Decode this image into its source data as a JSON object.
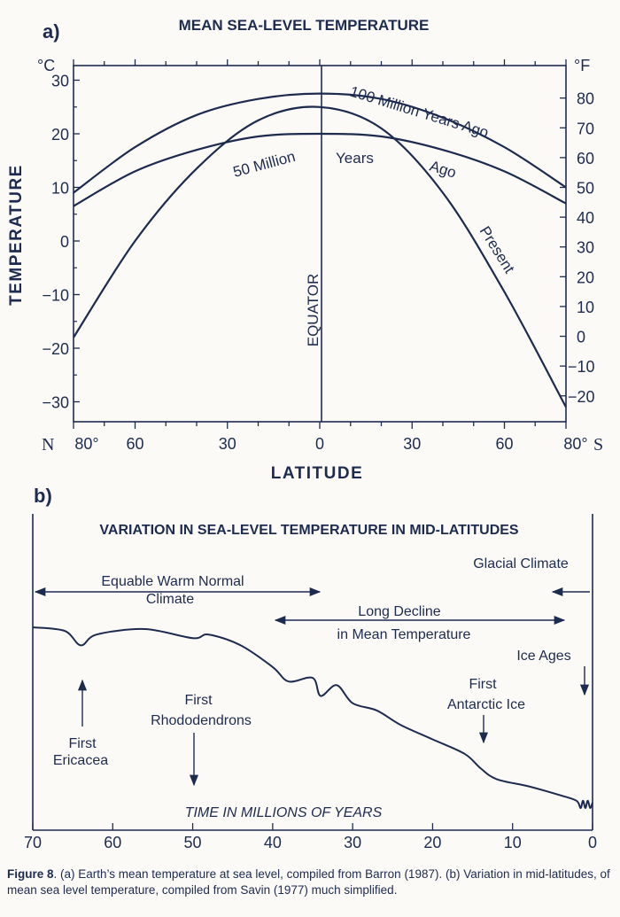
{
  "figure_a": {
    "panel_label": "a)",
    "title": "MEAN SEA-LEVEL TEMPERATURE",
    "unit_left": "°C",
    "unit_right": "°F",
    "ylabel": "TEMPERATURE",
    "xlabel": "LATITUDE",
    "x_left_letter": "N",
    "x_right_letter": "S",
    "equator_label": "EQUATOR",
    "curve_labels": {
      "mya100": "100 Million Years Ago",
      "mya50_a": "50 Million",
      "mya50_b": "Years",
      "mya50_c": "Ago",
      "present": "Present"
    }
  },
  "figure_b": {
    "panel_label": "b)",
    "title": "VARIATION IN SEA-LEVEL TEMPERATURE IN MID-LATITUDES",
    "xlabel": "TIME IN MILLIONS OF YEARS",
    "annotations": {
      "equable_1": "Equable Warm Normal",
      "equable_2": "Climate",
      "glacial": "Glacial Climate",
      "decline_1": "Long Decline",
      "decline_2": "in Mean Temperature",
      "ice_ages": "Ice Ages",
      "antarctic_1": "First",
      "antarctic_2": "Antarctic Ice",
      "rhodo_1": "First",
      "rhodo_2": "Rhododendrons",
      "erica_1": "First",
      "erica_2": "Ericacea"
    }
  },
  "caption": {
    "label": "Figure 8",
    "text": ". (a) Earth’s mean temperature at sea level, compiled from Barron (1987). (b) Variation in mid-latitudes, of mean sea level temperature, compiled from Savin (1977) much simplified."
  },
  "colors": {
    "ink": "#1d2b4f",
    "background": "#fbfaf7"
  },
  "chart_data": [
    {
      "type": "line",
      "title": "MEAN SEA-LEVEL TEMPERATURE",
      "xlabel": "LATITUDE",
      "ylabel": "TEMPERATURE",
      "x_ticks": [
        "80°",
        "60",
        "30",
        "0",
        "30",
        "60",
        "80°"
      ],
      "x_tick_values": [
        -80,
        -60,
        -30,
        0,
        30,
        60,
        80
      ],
      "xlim": [
        -80,
        80
      ],
      "ylim": [
        -35,
        33
      ],
      "y_ticks_left": [
        30,
        20,
        10,
        0,
        -10,
        -20,
        -30
      ],
      "y_ticks_right": [
        80,
        70,
        60,
        50,
        40,
        30,
        20,
        10,
        0,
        -10,
        -20
      ],
      "series": [
        {
          "name": "100 Million Years Ago",
          "x": [
            -80,
            -60,
            -40,
            -20,
            0,
            20,
            40,
            60,
            80
          ],
          "y": [
            9,
            17.5,
            23.5,
            26.5,
            27.5,
            26.5,
            23,
            17.5,
            10
          ]
        },
        {
          "name": "50 Million Years Ago",
          "x": [
            -80,
            -60,
            -40,
            -20,
            0,
            20,
            40,
            60,
            80
          ],
          "y": [
            6.5,
            13,
            17,
            19.5,
            20,
            19.5,
            17,
            13,
            7
          ]
        },
        {
          "name": "Present",
          "x": [
            -80,
            -60,
            -40,
            -20,
            0,
            20,
            40,
            60,
            80
          ],
          "y": [
            -18,
            0,
            13.5,
            22.5,
            25,
            21,
            9,
            -9.5,
            -31
          ]
        }
      ]
    },
    {
      "type": "line",
      "title": "VARIATION IN SEA-LEVEL TEMPERATURE IN MID-LATITUDES",
      "xlabel": "TIME IN MILLIONS OF YEARS",
      "x_ticks": [
        70,
        60,
        50,
        40,
        30,
        20,
        10,
        0
      ],
      "xlim": [
        70,
        0
      ],
      "y_axis": "unlabeled relative temperature",
      "series": [
        {
          "x": [
            70,
            66,
            64,
            62,
            56,
            50,
            48,
            44,
            40,
            38,
            35,
            34,
            32,
            30,
            27,
            24,
            20,
            16,
            14,
            12,
            8,
            4,
            2,
            1.5,
            1.2,
            0.9,
            0.6,
            0.3,
            0
          ],
          "y": [
            100,
            98,
            90,
            96,
            99,
            94,
            96,
            90,
            78,
            70,
            72,
            62,
            68,
            58,
            54,
            46,
            38,
            30,
            22,
            16,
            12,
            7,
            4,
            0,
            4,
            0,
            4,
            0,
            3
          ]
        }
      ],
      "annotations": [
        "Equable Warm Normal Climate",
        "Glacial Climate",
        "Long Decline in Mean Temperature",
        "Ice Ages",
        "First Antarctic Ice",
        "First Rhododendrons",
        "First Ericacea"
      ]
    }
  ]
}
